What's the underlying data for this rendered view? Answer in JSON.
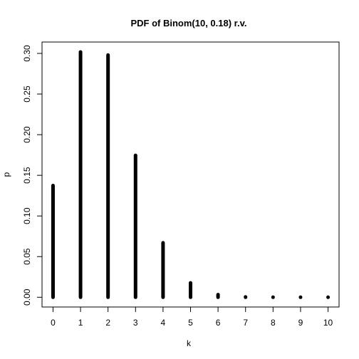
{
  "chart_data": {
    "type": "bar",
    "title": "PDF of Binom(10, 0.18) r.v.",
    "xlabel": "k",
    "ylabel": "p",
    "x": [
      0,
      1,
      2,
      3,
      4,
      5,
      6,
      7,
      8,
      9,
      10
    ],
    "values": [
      0.1374,
      0.3017,
      0.298,
      0.1745,
      0.067,
      0.0177,
      0.0032,
      0.0004,
      3e-05,
      1.5e-06,
      4e-08
    ],
    "xlim": [
      -0.4,
      10.4
    ],
    "ylim": [
      -0.012,
      0.314
    ],
    "xticks": [
      "0",
      "1",
      "2",
      "3",
      "4",
      "5",
      "6",
      "7",
      "8",
      "9",
      "10"
    ],
    "yticks": [
      "0.00",
      "0.05",
      "0.10",
      "0.15",
      "0.20",
      "0.25",
      "0.30"
    ],
    "grid": false,
    "legend": "none",
    "color": "#000000"
  }
}
